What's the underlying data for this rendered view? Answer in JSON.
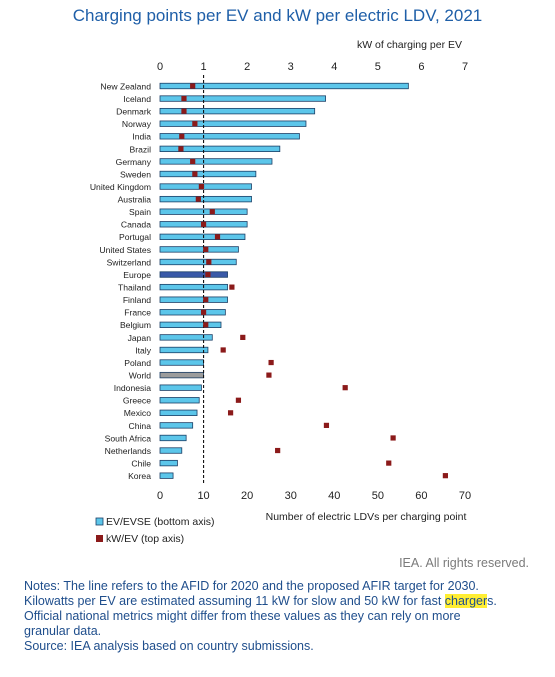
{
  "chart_data": {
    "type": "bar",
    "title": "Charging points per EV and kW per electric LDV, 2021",
    "top_axis_label": "kW of charging per EV",
    "bottom_axis_label": "Number of electric LDVs per charging point",
    "top_ticks": [
      "0",
      "1",
      "2",
      "3",
      "4",
      "5",
      "6",
      "7"
    ],
    "bottom_ticks": [
      "0",
      "10",
      "20",
      "30",
      "40",
      "50",
      "60",
      "70"
    ],
    "top_range": [
      0,
      7
    ],
    "bottom_range": [
      0,
      70
    ],
    "reference_line_bottom_value": 10,
    "legend": {
      "placement": "bottom-left",
      "bar_label": "EV/EVSE (bottom axis)",
      "marker_label": "kW/EV (top axis)"
    },
    "colors": {
      "bar": "#5cc6ea",
      "bar_europe": "#3a5aa8",
      "bar_world": "#9c9c9c",
      "marker": "#8b1a1a",
      "title": "#1f5fa8",
      "notes": "#1f4e8c"
    },
    "categories": [
      "New Zealand",
      "Iceland",
      "Denmark",
      "Norway",
      "India",
      "Brazil",
      "Germany",
      "Sweden",
      "United Kingdom",
      "Australia",
      "Spain",
      "Canada",
      "Portugal",
      "United States",
      "Switzerland",
      "Europe",
      "Thailand",
      "Finland",
      "France",
      "Belgium",
      "Japan",
      "Italy",
      "Poland",
      "World",
      "Indonesia",
      "Greece",
      "Mexico",
      "China",
      "South Africa",
      "Netherlands",
      "Chile",
      "Korea"
    ],
    "series": [
      {
        "name": "EV/EVSE (bottom axis)",
        "values": [
          57,
          38,
          35.5,
          33.5,
          32,
          27.5,
          25.7,
          22,
          21,
          21,
          20,
          20,
          19.5,
          18,
          17.5,
          15.5,
          15.5,
          15.5,
          15,
          14,
          12,
          11,
          10,
          10,
          9.5,
          9,
          8.5,
          7.5,
          6,
          5,
          4,
          3
        ]
      },
      {
        "name": "kW/EV (top axis)",
        "values": [
          0.75,
          0.55,
          0.55,
          0.8,
          0.5,
          0.48,
          0.75,
          0.8,
          0.95,
          0.88,
          1.2,
          1.0,
          1.32,
          1.05,
          1.12,
          1.1,
          1.65,
          1.05,
          1.0,
          1.05,
          1.9,
          1.45,
          2.55,
          2.5,
          4.25,
          1.8,
          1.62,
          3.82,
          5.35,
          2.7,
          5.25,
          6.55
        ]
      }
    ]
  },
  "credit": "IEA. All rights reserved.",
  "notes": {
    "line1": "Notes: The line refers to the AFID for 2020 and the proposed AFIR target for 2030.",
    "line2_pre": "Kilowatts per EV are estimated assuming 11 kW for slow and 50 kW for fast ",
    "line2_highlight": "charger",
    "line2_post": "s.",
    "line3": "Official national metrics might differ from these values as they can rely on more",
    "line4": "granular data.",
    "line5": "Source: IEA analysis based on country submissions."
  }
}
